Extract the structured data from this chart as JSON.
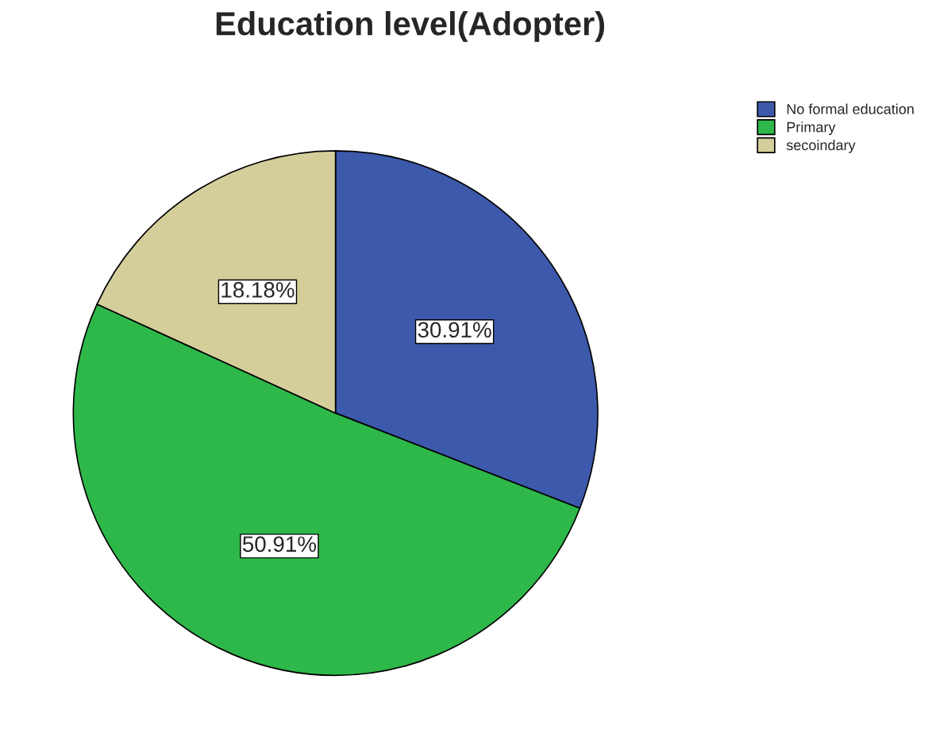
{
  "chart_data": {
    "type": "pie",
    "title": "Education level(Adopter)",
    "categories": [
      "No formal education",
      "Primary",
      "secoindary"
    ],
    "values": [
      30.91,
      50.91,
      18.18
    ],
    "colors": [
      "#3d59ab",
      "#2eb84a",
      "#d4cf9a"
    ],
    "value_labels": [
      "30.91%",
      "50.91%",
      "18.18%"
    ],
    "legend": "top right"
  }
}
